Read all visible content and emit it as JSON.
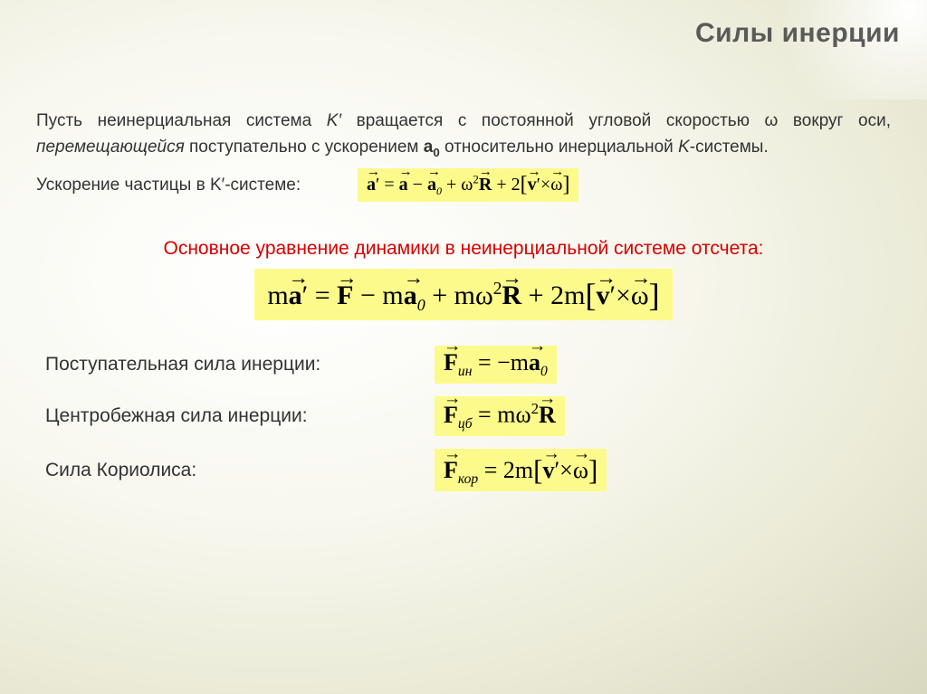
{
  "title": "Силы инерции",
  "intro_html": "Пусть неинерциальная система <span class='it'>K′</span> вращается с постоянной угловой скоростью ω вокруг оси, <span class='it'>перемещающейся</span> поступательно с ускорением <b>а<span class='sub'>0</span></b> относительно инерциальной <span class='it'>K</span>-системы.",
  "accel_label": "Ускорение частицы в K′-системе:",
  "main_heading": "Основное уравнение динамики в неинерциальной системе отсчета:",
  "forces": [
    {
      "label": "Поступательная сила инерции:",
      "sub": "ин",
      "rhs_html": "= −<span class='it'>m</span><span class='vec bold'>a</span><span class='subsc'>0</span>"
    },
    {
      "label": "Центробежная сила инерции:",
      "sub": "цб",
      "rhs_html": "= <span class='it'>m</span>ω<span class='supsc'>2</span><span class='vec bold'>R</span>"
    },
    {
      "label": "Сила Кориолиса:",
      "sub": "кор",
      "rhs_html": "= 2<span class='it'>m</span><span class='bracket'>[</span><span class='vec bold'>v</span>′×<span class='vec'>ω</span><span class='bracket'>]</span>"
    }
  ],
  "colors": {
    "highlight": "#fcfa8a",
    "title": "#5a5a5a",
    "heading_red": "#d60000",
    "text": "#333333"
  },
  "accel_eq_html": "<span class='vec bold'>a</span>′ = <span class='vec bold'>a</span> − <span class='vec bold'>a</span><span class='subsc'>0</span> + ω<span class='supsc'>2</span><span class='vec bold'>R</span> + 2<span class='bracket'>[</span><span class='vec bold'>v</span>′×<span class='vec'>ω</span><span class='bracket'>]</span>",
  "main_eq_html": "<span class='it'>m</span><span class='vec bold'>a</span>′ = <span class='vec bold'>F</span> − <span class='it'>m</span><span class='vec bold'>a</span><span class='subsc'>0</span> + <span class='it'>m</span>ω<span class='supsc'>2</span><span class='vec bold'>R</span> + 2<span class='it'>m</span><span class='bracket'>[</span><span class='vec bold'>v</span>′×<span class='vec'>ω</span><span class='bracket'>]</span>"
}
